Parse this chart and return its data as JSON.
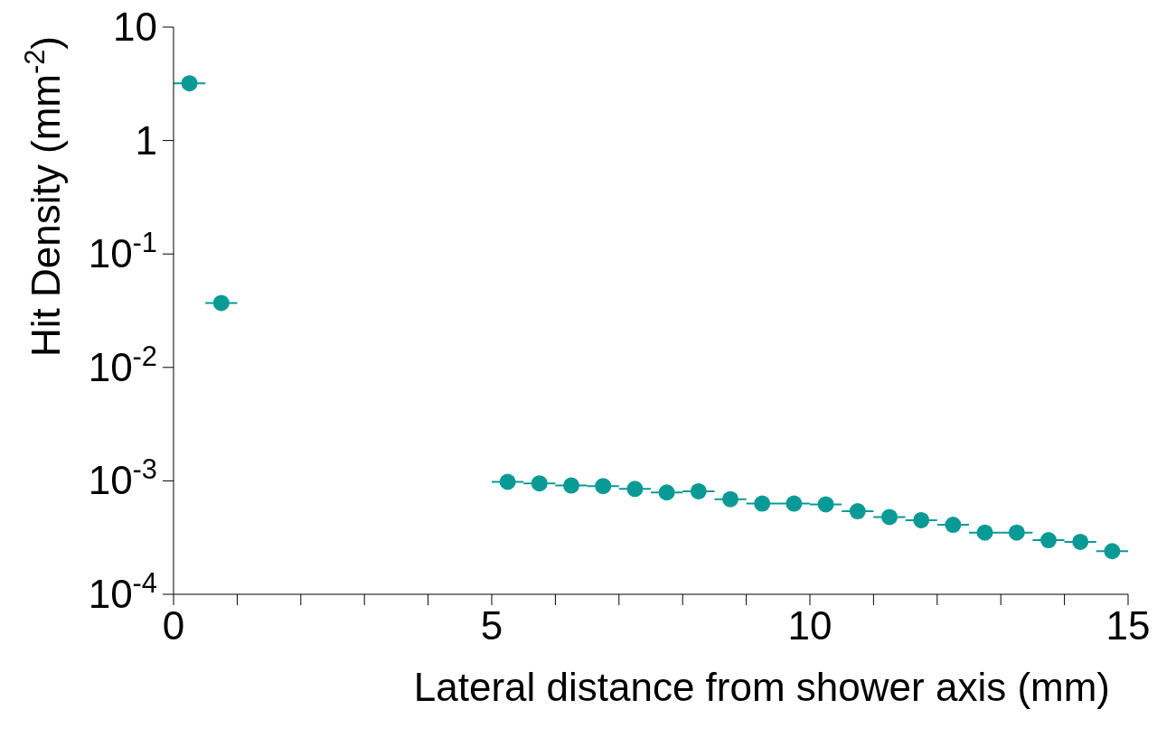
{
  "chart_data": {
    "type": "scatter",
    "xlabel": "Lateral distance from shower axis (mm)",
    "ylabel": "Hit Density (mm$^{-2}$)",
    "log": "y",
    "marker": "circle",
    "grid": false,
    "legend": false,
    "xlim": [
      0,
      15
    ],
    "xticks": [
      0,
      {
        "value": 1,
        "label": null
      },
      {
        "value": 2,
        "label": null
      },
      {
        "value": 3,
        "label": null
      },
      {
        "value": 4,
        "label": null
      },
      5,
      {
        "value": 6,
        "label": null
      },
      {
        "value": 7,
        "label": null
      },
      {
        "value": 8,
        "label": null
      },
      {
        "value": 9,
        "label": null
      },
      10,
      {
        "value": 11,
        "label": null
      },
      {
        "value": 12,
        "label": null
      },
      {
        "value": 13,
        "label": null
      },
      {
        "value": 14,
        "label": null
      },
      15
    ],
    "ylim": [
      0.0001,
      10
    ],
    "yticks": [
      {
        "value": 0.0001,
        "label": "10$^{-4}$"
      },
      {
        "value": 0.001,
        "label": "10$^{-3}$"
      },
      {
        "value": 0.01,
        "label": "10$^{-2}$"
      },
      {
        "value": 0.1,
        "label": "10$^{-1}$"
      },
      1,
      10
    ],
    "series": [
      {
        "color": "#0a9a96",
        "x": [
          0.25,
          0.75,
          5.25,
          5.75,
          6.25,
          6.75,
          7.25,
          7.75,
          8.25,
          8.75,
          9.25,
          9.75,
          10.25,
          10.75,
          11.25,
          11.75,
          12.25,
          12.75,
          13.25,
          13.75,
          14.25,
          14.75
        ],
        "values": [
          3.2,
          0.037,
          0.00098,
          0.00095,
          0.00091,
          0.0009,
          0.00085,
          0.00079,
          0.00081,
          0.00069,
          0.00063,
          0.00063,
          0.00062,
          0.00054,
          0.00048,
          0.00045,
          0.00041,
          0.00035,
          0.00035,
          0.0003,
          0.00029,
          0.00024
        ],
        "xerrors": [
          0.25,
          0.25,
          0.25,
          0.25,
          0.25,
          0.25,
          0.25,
          0.25,
          0.25,
          0.25,
          0.25,
          0.25,
          0.25,
          0.25,
          0.25,
          0.25,
          0.25,
          0.25,
          0.25,
          0.25,
          0.25,
          0.25
        ]
      }
    ]
  }
}
